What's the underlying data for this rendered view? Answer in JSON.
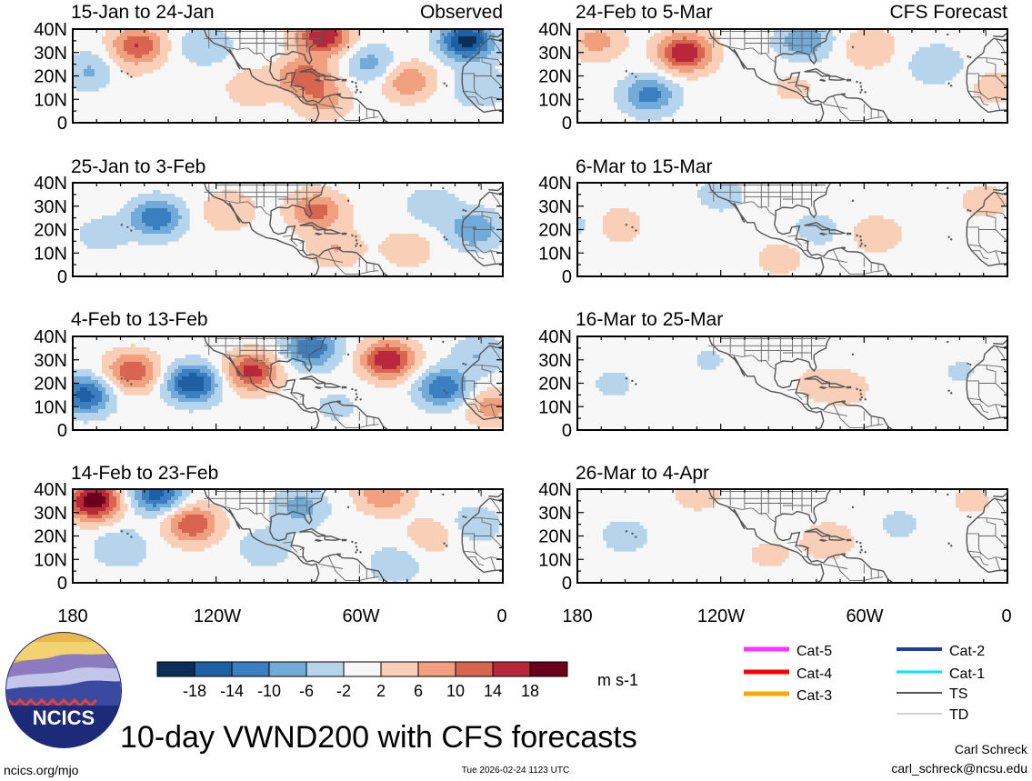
{
  "chart_data": {
    "type": "heatmap",
    "variable": "10-day VWND200 with CFS forecasts",
    "units": "m s-1",
    "lat_ticks": [
      "40N",
      "30N",
      "20N",
      "10N",
      "0"
    ],
    "lon_ticks": [
      "180",
      "120W",
      "60W",
      "0"
    ],
    "lat_range": [
      0,
      40
    ],
    "lon_range": [
      -180,
      0
    ],
    "contour_levels": [
      -18,
      -14,
      -10,
      -6,
      -2,
      2,
      6,
      10,
      14,
      18
    ],
    "colorbar_labels": [
      "-18",
      "-14",
      "-10",
      "-6",
      "-2",
      "2",
      "6",
      "10",
      "14",
      "18"
    ],
    "colorbar_colors": [
      "#0b2e59",
      "#1f5fa3",
      "#3c7fc0",
      "#73abd8",
      "#b6d5ec",
      "#f7f7f7",
      "#f9cfb7",
      "#f0a07f",
      "#d8654f",
      "#b8283a",
      "#6a001e"
    ],
    "panels": [
      {
        "id": "obs-1",
        "column": "Observed",
        "period": "15-Jan to 24-Jan",
        "header": "Observed",
        "anomalies": [
          {
            "lon": -153,
            "lat": 33,
            "value": 14
          },
          {
            "lon": -172,
            "lat": 22,
            "value": -7
          },
          {
            "lon": -160,
            "lat": 20,
            "value": 2
          },
          {
            "lon": -125,
            "lat": 33,
            "value": -6
          },
          {
            "lon": -75,
            "lat": 37,
            "value": 18
          },
          {
            "lon": -83,
            "lat": 20,
            "value": 12
          },
          {
            "lon": -75,
            "lat": 10,
            "value": 8
          },
          {
            "lon": -15,
            "lat": 35,
            "value": -20
          },
          {
            "lon": -55,
            "lat": 25,
            "value": -8
          },
          {
            "lon": -40,
            "lat": 18,
            "value": 10
          },
          {
            "lon": -10,
            "lat": 15,
            "value": -6
          },
          {
            "lon": -105,
            "lat": 15,
            "value": 5
          }
        ]
      },
      {
        "id": "obs-2",
        "column": "Observed",
        "period": "25-Jan to 3-Feb",
        "anomalies": [
          {
            "lon": -145,
            "lat": 25,
            "value": -14
          },
          {
            "lon": -168,
            "lat": 18,
            "value": -4
          },
          {
            "lon": -115,
            "lat": 28,
            "value": 6
          },
          {
            "lon": -78,
            "lat": 28,
            "value": 12
          },
          {
            "lon": -70,
            "lat": 12,
            "value": 6
          },
          {
            "lon": -40,
            "lat": 12,
            "value": 5
          },
          {
            "lon": -30,
            "lat": 30,
            "value": -5
          },
          {
            "lon": -12,
            "lat": 20,
            "value": -10
          }
        ]
      },
      {
        "id": "obs-3",
        "column": "Observed",
        "period": "4-Feb to 13-Feb",
        "anomalies": [
          {
            "lon": -175,
            "lat": 15,
            "value": -16
          },
          {
            "lon": -155,
            "lat": 25,
            "value": 14
          },
          {
            "lon": -130,
            "lat": 20,
            "value": -18
          },
          {
            "lon": -105,
            "lat": 25,
            "value": 16
          },
          {
            "lon": -80,
            "lat": 35,
            "value": -14
          },
          {
            "lon": -70,
            "lat": 10,
            "value": -3
          },
          {
            "lon": -48,
            "lat": 30,
            "value": 18
          },
          {
            "lon": -25,
            "lat": 18,
            "value": -14
          },
          {
            "lon": -5,
            "lat": 10,
            "value": 8
          },
          {
            "lon": -10,
            "lat": 32,
            "value": -6
          }
        ]
      },
      {
        "id": "obs-4",
        "column": "Observed",
        "period": "14-Feb to 23-Feb",
        "anomalies": [
          {
            "lon": -171,
            "lat": 35,
            "value": 22
          },
          {
            "lon": -145,
            "lat": 38,
            "value": -16
          },
          {
            "lon": -130,
            "lat": 25,
            "value": 14
          },
          {
            "lon": -160,
            "lat": 15,
            "value": -6
          },
          {
            "lon": -100,
            "lat": 15,
            "value": -5
          },
          {
            "lon": -85,
            "lat": 32,
            "value": -8
          },
          {
            "lon": -50,
            "lat": 38,
            "value": 10
          },
          {
            "lon": -30,
            "lat": 20,
            "value": 5
          },
          {
            "lon": -45,
            "lat": 8,
            "value": -5
          },
          {
            "lon": -12,
            "lat": 25,
            "value": -5
          }
        ]
      },
      {
        "id": "fcst-1",
        "column": "CFS Forecast",
        "period": "24-Feb to 5-Mar",
        "header": "CFS Forecast",
        "anomalies": [
          {
            "lon": -135,
            "lat": 30,
            "value": 18
          },
          {
            "lon": -172,
            "lat": 35,
            "value": 8
          },
          {
            "lon": -150,
            "lat": 12,
            "value": -12
          },
          {
            "lon": -85,
            "lat": 35,
            "value": -10
          },
          {
            "lon": -58,
            "lat": 32,
            "value": 6
          },
          {
            "lon": -30,
            "lat": 25,
            "value": -6
          },
          {
            "lon": -5,
            "lat": 15,
            "value": 4
          },
          {
            "lon": -90,
            "lat": 15,
            "value": 3
          }
        ]
      },
      {
        "id": "fcst-2",
        "column": "CFS Forecast",
        "period": "6-Mar to 15-Mar",
        "anomalies": [
          {
            "lon": -165,
            "lat": 22,
            "value": 6
          },
          {
            "lon": -175,
            "lat": 22,
            "value": -4
          },
          {
            "lon": -120,
            "lat": 35,
            "value": -4
          },
          {
            "lon": -80,
            "lat": 20,
            "value": -4
          },
          {
            "lon": -55,
            "lat": 18,
            "value": 5
          },
          {
            "lon": -10,
            "lat": 32,
            "value": 4
          },
          {
            "lon": -95,
            "lat": 8,
            "value": 4
          }
        ]
      },
      {
        "id": "fcst-3",
        "column": "CFS Forecast",
        "period": "16-Mar to 25-Mar",
        "anomalies": [
          {
            "lon": -165,
            "lat": 20,
            "value": -3
          },
          {
            "lon": -125,
            "lat": 30,
            "value": -2.5
          },
          {
            "lon": -80,
            "lat": 20,
            "value": 3
          },
          {
            "lon": -68,
            "lat": 18,
            "value": 4
          },
          {
            "lon": -20,
            "lat": 25,
            "value": -2.5
          }
        ]
      },
      {
        "id": "fcst-4",
        "column": "CFS Forecast",
        "period": "26-Mar to 4-Apr",
        "anomalies": [
          {
            "lon": -160,
            "lat": 20,
            "value": -4
          },
          {
            "lon": -130,
            "lat": 38,
            "value": 4
          },
          {
            "lon": -75,
            "lat": 18,
            "value": 5
          },
          {
            "lon": -45,
            "lat": 25,
            "value": -3
          },
          {
            "lon": -15,
            "lat": 35,
            "value": 3
          },
          {
            "lon": -100,
            "lat": 12,
            "value": 3
          }
        ]
      }
    ]
  },
  "legend": {
    "storm_categories": [
      {
        "label": "Cat-5",
        "color": "#ff33ff"
      },
      {
        "label": "Cat-4",
        "color": "#ff0000"
      },
      {
        "label": "Cat-3",
        "color": "#ffa500"
      },
      {
        "label": "Cat-2",
        "color": "#1f3ca8"
      },
      {
        "label": "Cat-1",
        "color": "#00e5ff"
      },
      {
        "label": "TS",
        "color": "#555555"
      },
      {
        "label": "TD",
        "color": "#aaaaaa"
      }
    ]
  },
  "footer": {
    "logo_text": "NCICS",
    "main_title": "10-day VWND200 with CFS forecasts",
    "website": "ncics.org/mjo",
    "timestamp": "Tue 2026-02-24 1123 UTC",
    "author": "Carl Schreck",
    "email": "carl_schreck@ncsu.edu"
  }
}
